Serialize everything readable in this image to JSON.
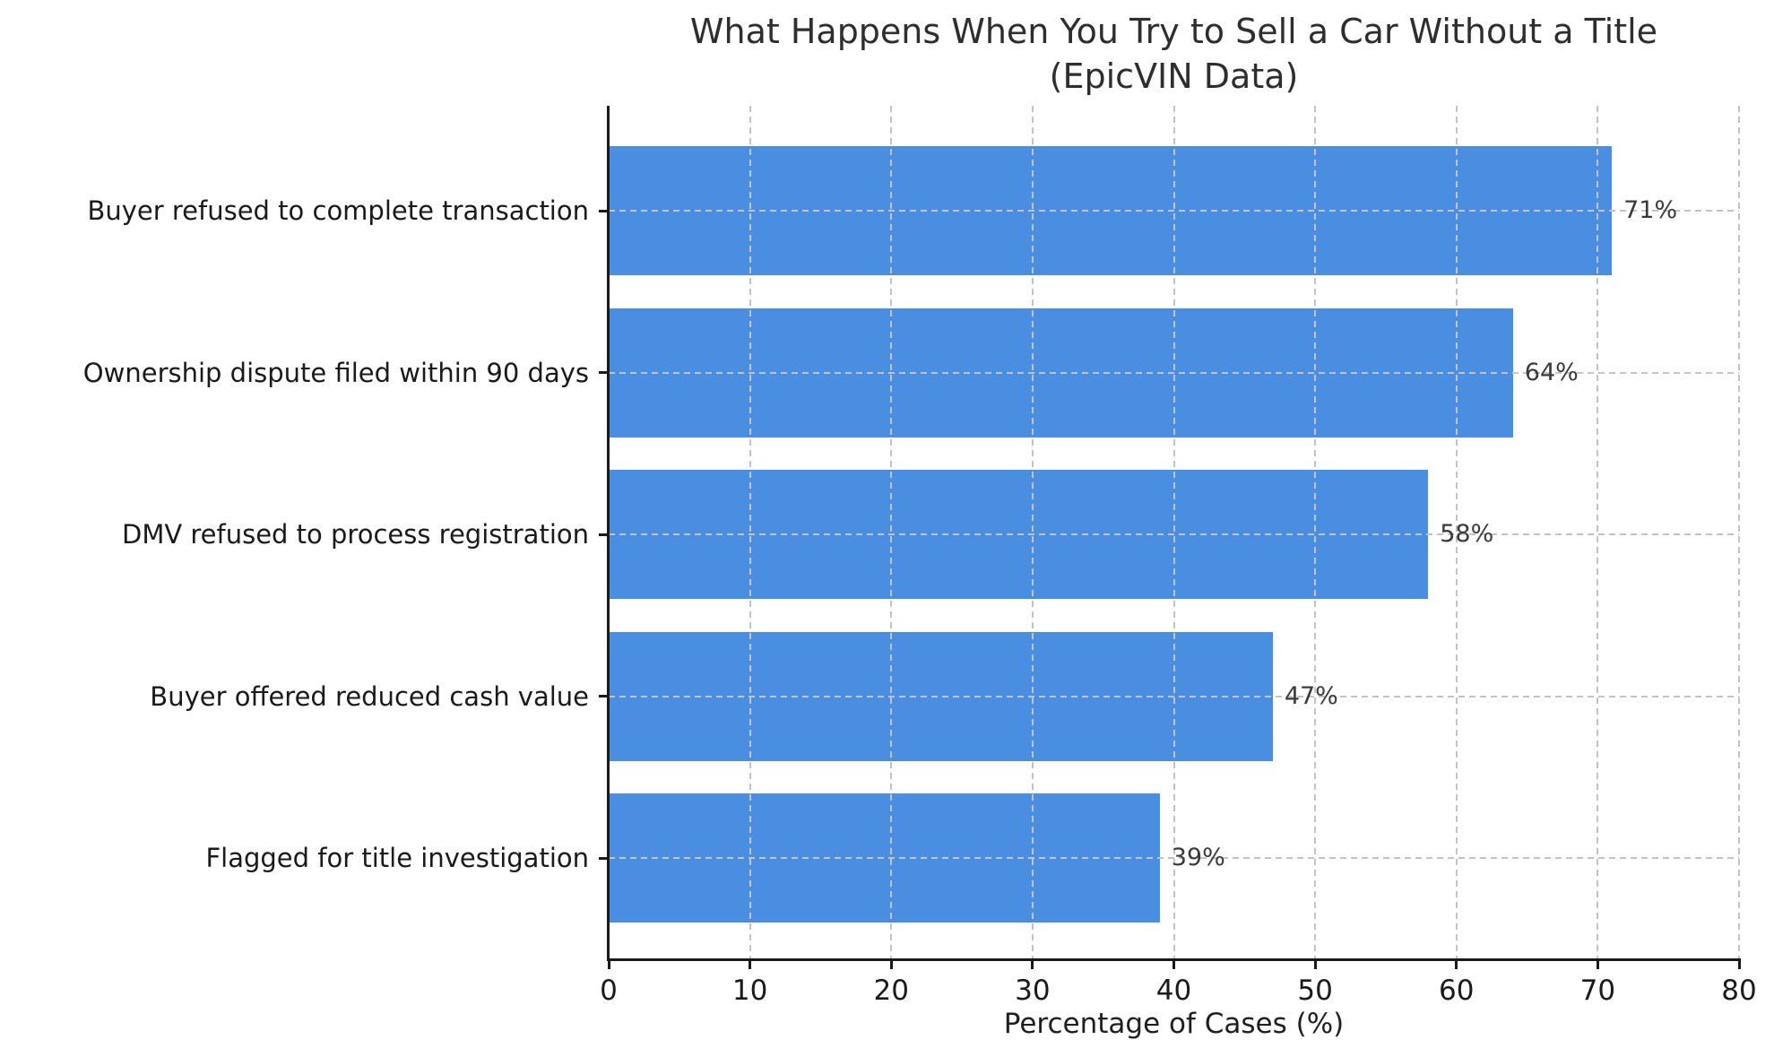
{
  "chart_data": {
    "type": "bar",
    "orientation": "horizontal",
    "title": "What Happens When You Try to Sell a Car Without a Title",
    "subtitle": "(EpicVIN Data)",
    "xlabel": "Percentage of Cases (%)",
    "categories": [
      "Buyer refused to complete transaction",
      "Ownership dispute filed within 90 days",
      "DMV refused to process registration",
      "Buyer offered reduced cash value",
      "Flagged for title investigation"
    ],
    "values": [
      71,
      64,
      58,
      47,
      39
    ],
    "value_labels": [
      "71%",
      "64%",
      "58%",
      "47%",
      "39%"
    ],
    "xlim": [
      0,
      80
    ],
    "xticks": [
      0,
      10,
      20,
      30,
      40,
      50,
      60,
      70,
      80
    ],
    "bar_color": "#4a8ee2",
    "grid": "dashed",
    "legend": "none"
  }
}
